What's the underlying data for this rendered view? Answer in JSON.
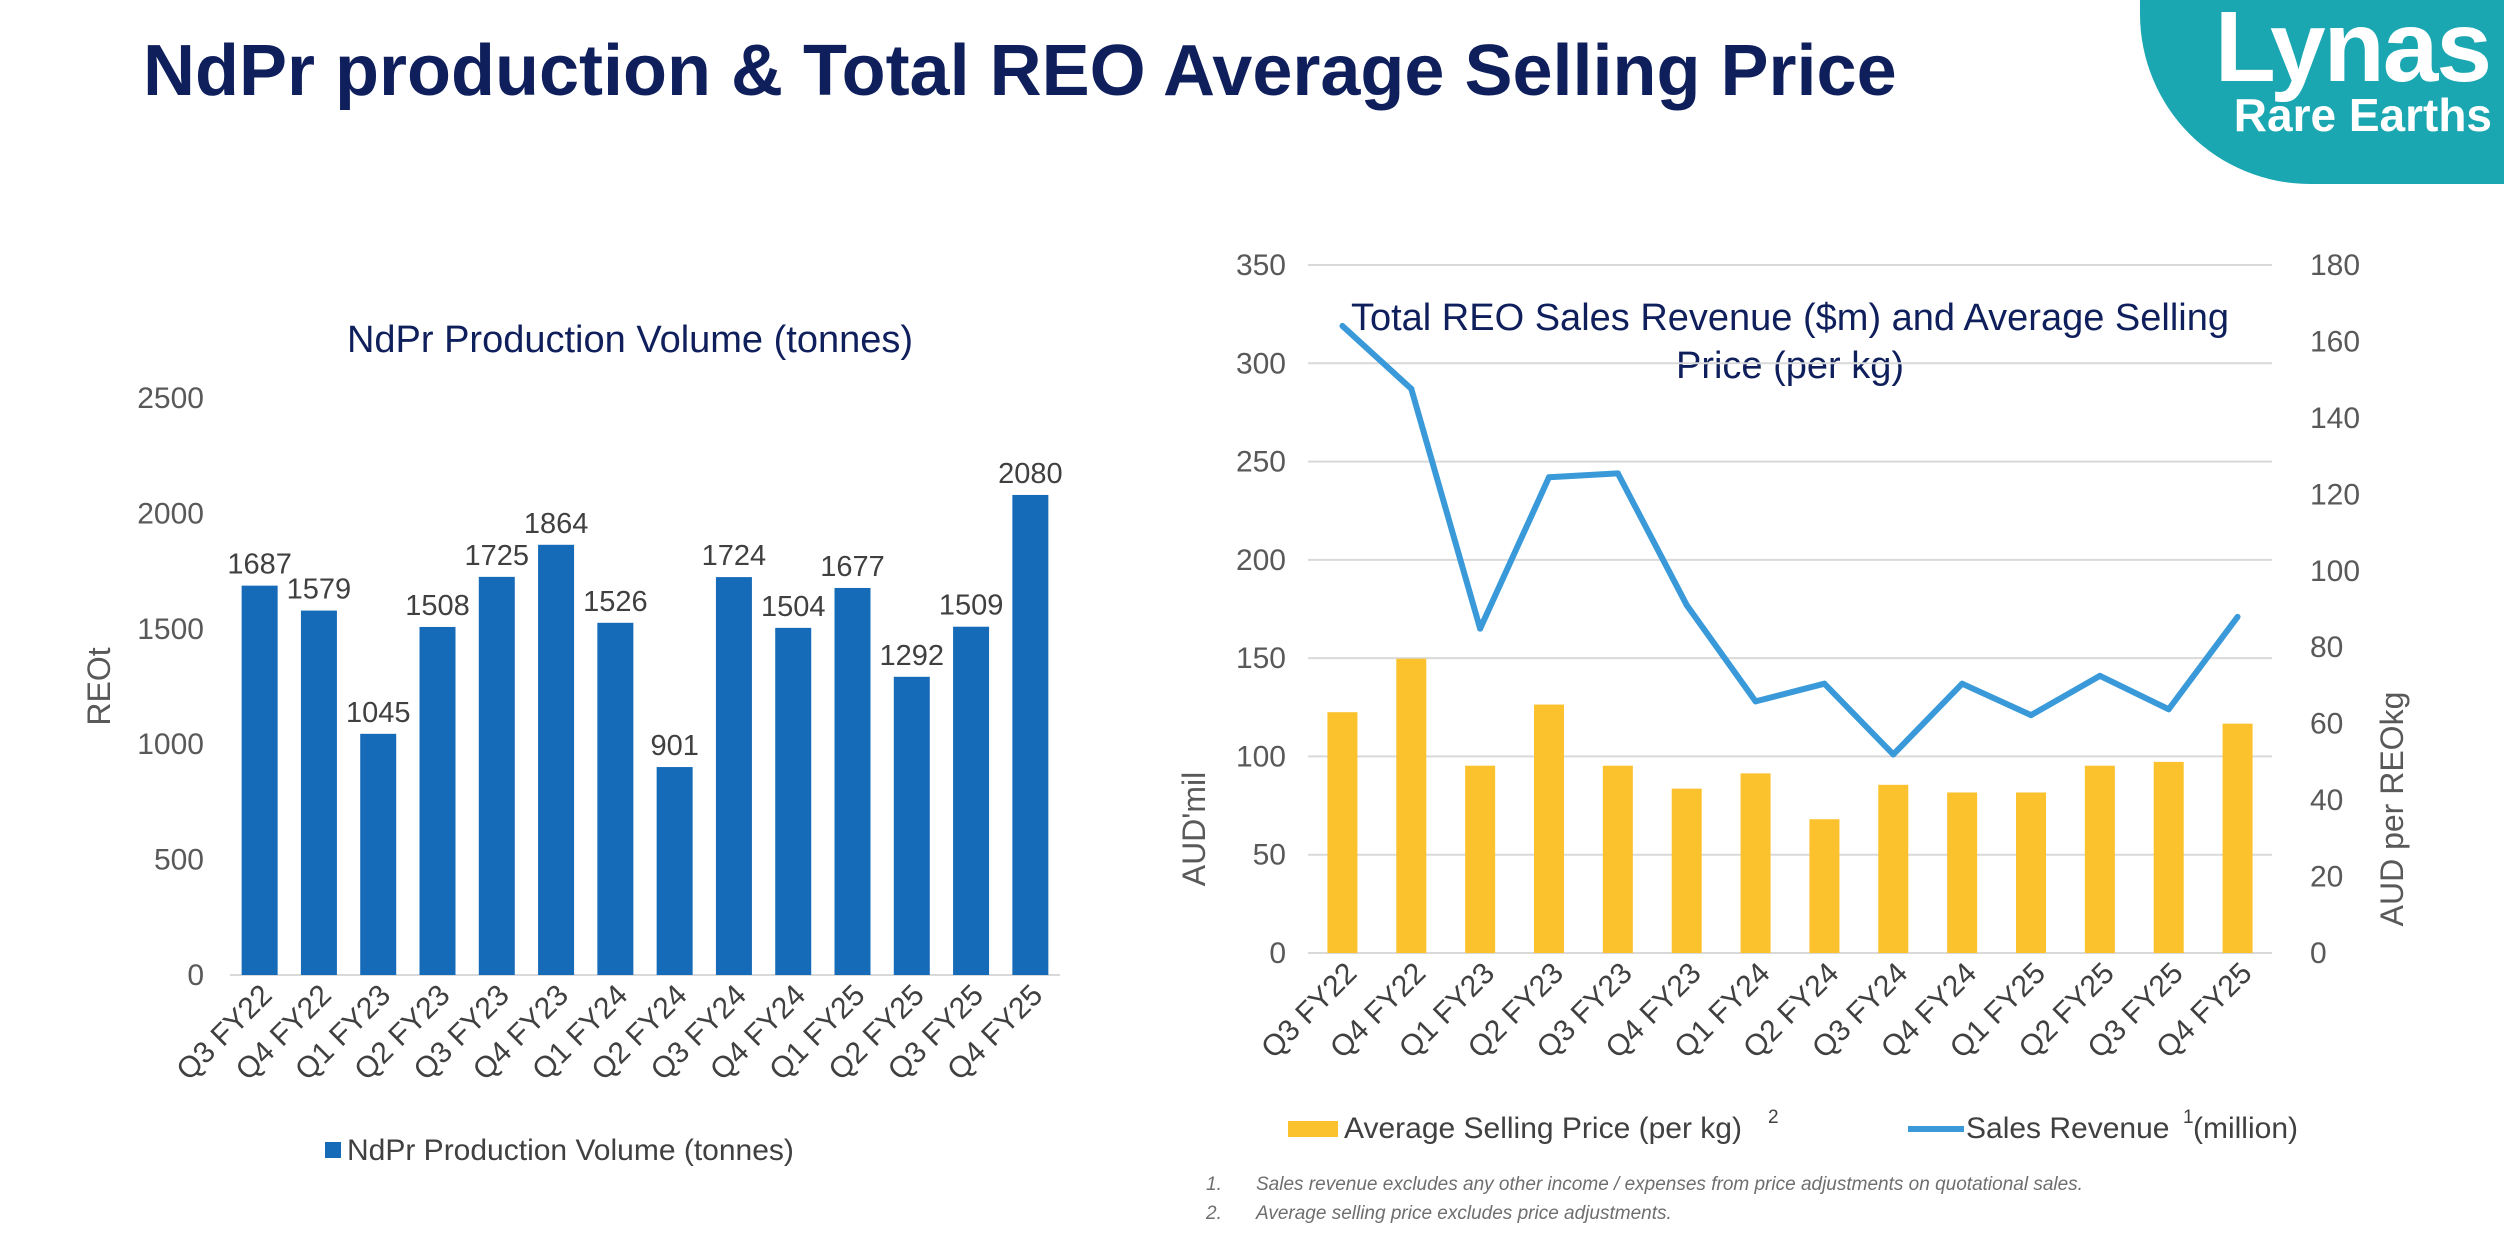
{
  "slide": {
    "title": "NdPr production & Total REO Average Selling Price",
    "logo": {
      "main": "Lynas",
      "sub": "Rare Earths",
      "color": "#1aa7b1"
    },
    "title_color": "#0f1f5c"
  },
  "chart_data": [
    {
      "type": "bar",
      "title": "NdPr Production Volume (tonnes)",
      "ylabel": "REOt",
      "xlabel": "",
      "categories": [
        "Q3 FY22",
        "Q4 FY22",
        "Q1 FY23",
        "Q2 FY23",
        "Q3 FY23",
        "Q4 FY23",
        "Q1 FY24",
        "Q2 FY24",
        "Q3 FY24",
        "Q4 FY24",
        "Q1 FY25",
        "Q2 FY25",
        "Q3 FY25",
        "Q4 FY25"
      ],
      "series": [
        {
          "name": "NdPr Production Volume (tonnes)",
          "color": "#166bb8",
          "values": [
            1687,
            1579,
            1045,
            1508,
            1725,
            1864,
            1526,
            901,
            1724,
            1504,
            1677,
            1292,
            1509,
            2080
          ]
        }
      ],
      "ylim": [
        0,
        2500
      ],
      "yticks": [
        0,
        500,
        1000,
        1500,
        2000,
        2500
      ],
      "data_labels": true,
      "grid": false,
      "legend": "bottom"
    },
    {
      "type": "bar+line",
      "title": "Total REO Sales Revenue ($m) and Average Selling Price (per kg)",
      "ylabel": "AUD'mil",
      "y2label": "AUD per REOkg",
      "xlabel": "",
      "categories": [
        "Q3 FY22",
        "Q4 FY22",
        "Q1 FY23",
        "Q2 FY23",
        "Q3 FY23",
        "Q4 FY23",
        "Q1 FY24",
        "Q2 FY24",
        "Q3 FY24",
        "Q4 FY24",
        "Q1 FY25",
        "Q2 FY25",
        "Q3 FY25",
        "Q4 FY25"
      ],
      "series": [
        {
          "name": "Average Selling Price (per kg)",
          "superscript": "2",
          "kind": "bar",
          "axis": "right",
          "color": "#fcc22d",
          "values": [
            63,
            77,
            49,
            65,
            49,
            43,
            47,
            35,
            44,
            42,
            42,
            49,
            50,
            60
          ]
        },
        {
          "name": "Sales Revenue",
          "superscript": "1",
          "suffix": "(million)",
          "kind": "line",
          "axis": "left",
          "color": "#3a9ad9",
          "values": [
            319,
            287,
            165,
            242,
            244,
            177,
            128,
            137,
            101,
            137,
            121,
            141,
            124,
            171
          ]
        }
      ],
      "ylim": [
        0,
        350
      ],
      "yticks": [
        0,
        50,
        100,
        150,
        200,
        250,
        300,
        350
      ],
      "y2lim": [
        0,
        180
      ],
      "y2ticks": [
        0,
        20,
        40,
        60,
        80,
        100,
        120,
        140,
        160,
        180
      ],
      "grid": true,
      "legend": "bottom"
    }
  ],
  "footnotes": [
    {
      "num": "1.",
      "text": "Sales revenue excludes any other income / expenses from price adjustments on quotational sales."
    },
    {
      "num": "2.",
      "text": "Average selling price excludes price adjustments."
    }
  ]
}
